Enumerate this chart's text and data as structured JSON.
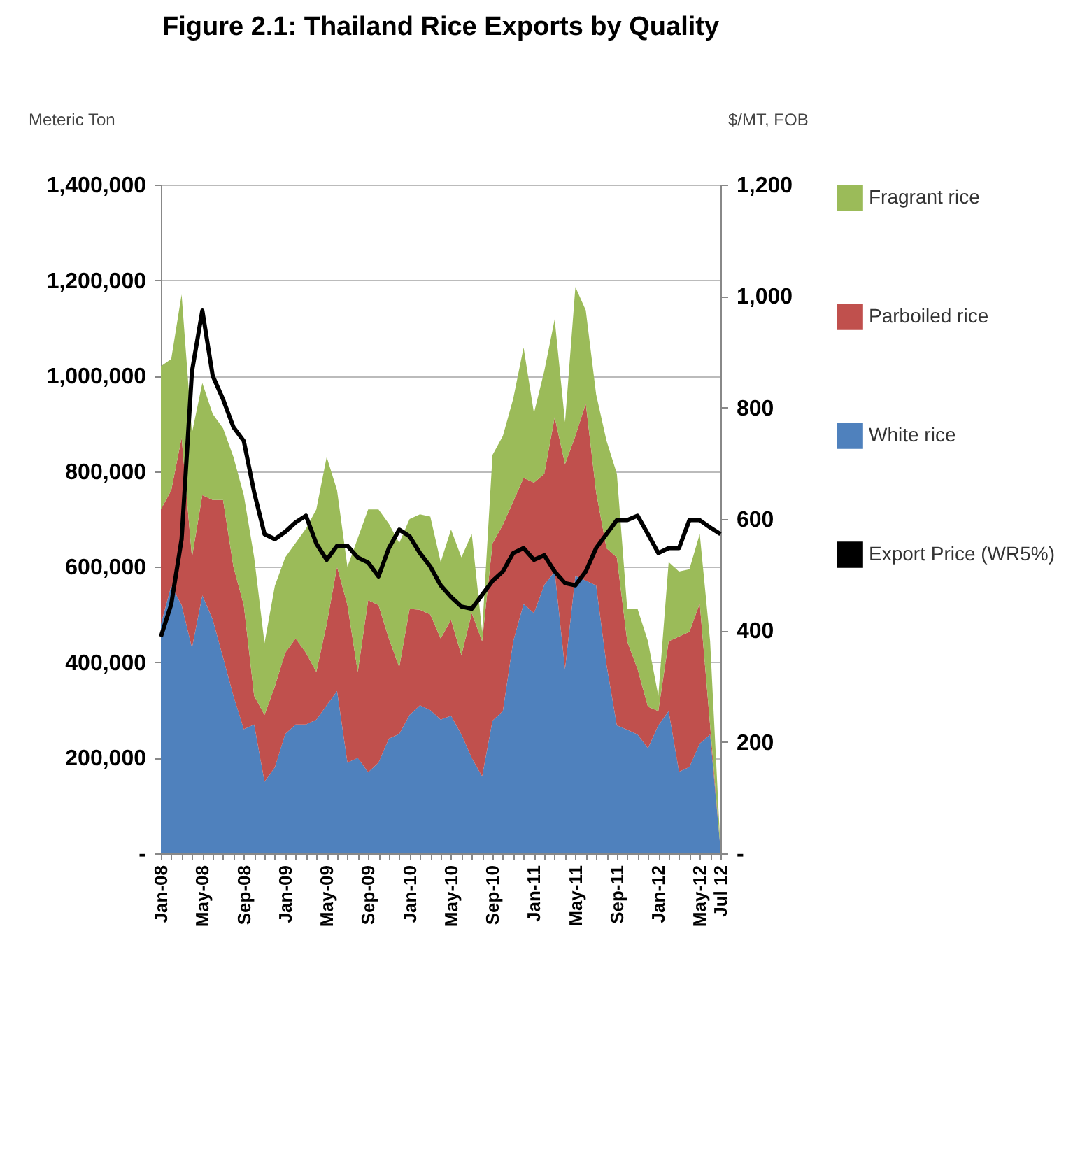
{
  "chart_data": {
    "type": "area",
    "title": "Figure 2.1: Thailand Rice Exports by Quality",
    "ylabel": "Meteric Ton",
    "y2label": "$/MT, FOB",
    "categories": [
      "Jan-08",
      null,
      null,
      null,
      "May-08",
      null,
      null,
      null,
      "Sep-08",
      null,
      null,
      null,
      "Jan-09",
      null,
      null,
      null,
      "May-09",
      null,
      null,
      null,
      "Sep-09",
      null,
      null,
      null,
      "Jan-10",
      null,
      null,
      null,
      "May-10",
      null,
      null,
      null,
      "Sep-10",
      null,
      null,
      null,
      "Jan-11",
      null,
      null,
      null,
      "May-11",
      null,
      null,
      null,
      "Sep-11",
      null,
      null,
      null,
      "Jan-12",
      null,
      null,
      null,
      "May-12",
      null,
      "Jul 12"
    ],
    "stacked": true,
    "series": [
      {
        "name": "White rice",
        "color": "#4f81bd",
        "values": [
          480000,
          560000,
          520000,
          430000,
          540000,
          490000,
          410000,
          330000,
          260000,
          270000,
          150000,
          180000,
          250000,
          270000,
          270000,
          280000,
          310000,
          340000,
          190000,
          200000,
          170000,
          190000,
          240000,
          250000,
          290000,
          310000,
          300000,
          280000,
          288000,
          249000,
          200000,
          161000,
          278000,
          298000,
          444000,
          522000,
          503000,
          562000,
          590000,
          386000,
          581000,
          571000,
          561000,
          395000,
          268000,
          259000,
          249000,
          220000,
          268000,
          298000,
          171000,
          181000,
          230000,
          249000,
          10000
        ]
      },
      {
        "name": "Parboiled rice",
        "color": "#c0504d",
        "values": [
          240000,
          200000,
          350000,
          190000,
          210000,
          250000,
          330000,
          270000,
          260000,
          60000,
          140000,
          170000,
          170000,
          180000,
          150000,
          100000,
          170000,
          260000,
          330000,
          180000,
          360000,
          330000,
          210000,
          140000,
          222000,
          200000,
          200000,
          170000,
          201000,
          166000,
          303000,
          283000,
          371000,
          390000,
          293000,
          264000,
          273000,
          233000,
          323000,
          429000,
          293000,
          371000,
          195000,
          244000,
          352000,
          185000,
          137000,
          87000,
          30000,
          146000,
          283000,
          283000,
          293000,
          19000,
          0
        ]
      },
      {
        "name": "Fragrant rice",
        "color": "#9bbb59",
        "values": [
          300000,
          275000,
          300000,
          260000,
          235000,
          180000,
          150000,
          230000,
          230000,
          290000,
          150000,
          210000,
          200000,
          200000,
          260000,
          340000,
          350000,
          160000,
          80000,
          280000,
          190000,
          200000,
          240000,
          260000,
          188000,
          200000,
          205000,
          160000,
          189000,
          205000,
          166000,
          20000,
          185000,
          186000,
          215000,
          273000,
          146000,
          215000,
          205000,
          88000,
          312000,
          195000,
          205000,
          225000,
          175000,
          68000,
          126000,
          137000,
          32000,
          166000,
          136000,
          131000,
          146000,
          176000,
          0
        ]
      },
      {
        "name": "Export Price (WR5%)",
        "type": "line",
        "axis": "y2",
        "color": "#000000",
        "values": [
          389,
          447,
          564,
          865,
          974,
          857,
          815,
          765,
          740,
          648,
          573,
          564,
          577,
          594,
          606,
          556,
          527,
          552,
          552,
          531,
          522,
          497,
          548,
          581,
          569,
          539,
          515,
          481,
          460,
          443,
          439,
          464,
          489,
          506,
          539,
          548,
          527,
          535,
          506,
          485,
          481,
          506,
          548,
          573,
          598,
          598,
          606,
          573,
          539,
          548,
          548,
          598,
          598,
          585,
          573
        ]
      }
    ],
    "ylim": [
      0,
      1400000
    ],
    "yticks": [
      {
        "value": 0,
        "label": "-"
      },
      {
        "value": 200000,
        "label": "200,000"
      },
      {
        "value": 400000,
        "label": "400,000"
      },
      {
        "value": 600000,
        "label": "600,000"
      },
      {
        "value": 800000,
        "label": "800,000"
      },
      {
        "value": 1000000,
        "label": "1,000,000"
      },
      {
        "value": 1200000,
        "label": "1,200,000"
      },
      {
        "value": 1400000,
        "label": "1,400,000"
      }
    ],
    "y2lim": [
      0,
      1200
    ],
    "y2ticks": [
      {
        "value": 0,
        "label": "-"
      },
      200,
      400,
      600,
      800,
      {
        "value": 1000,
        "label": "1,000"
      },
      {
        "value": 1200,
        "label": "1,200"
      }
    ],
    "grid": "y",
    "legend": "right"
  }
}
